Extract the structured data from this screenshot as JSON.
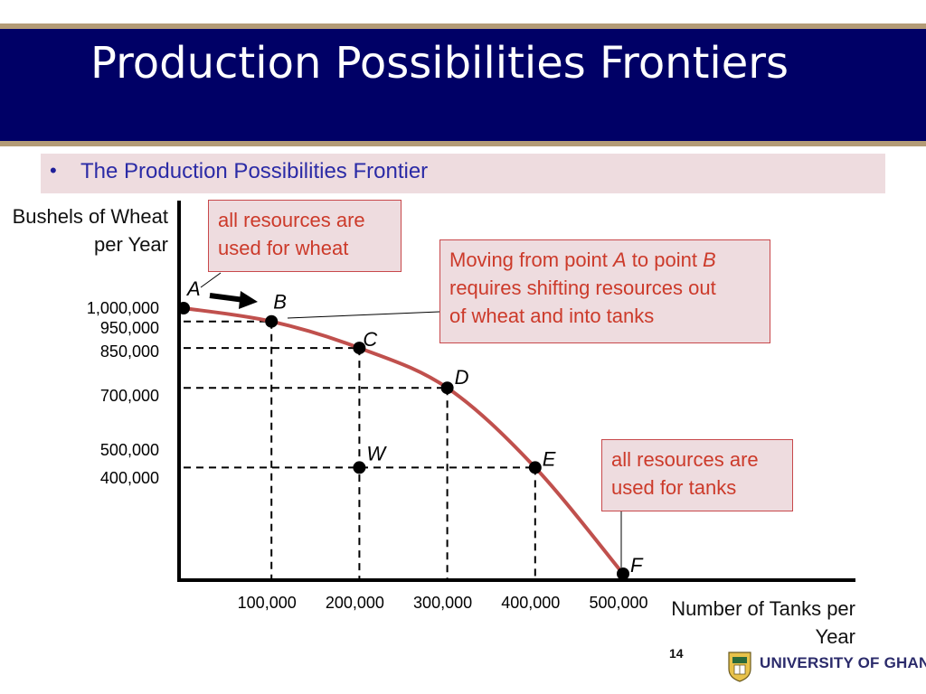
{
  "slide": {
    "title": "Production Possibilities Frontiers",
    "bullet": "The Production Possibilities Frontier",
    "page_number": "14",
    "university": "UNIVERSITY OF GHANA"
  },
  "callouts": {
    "wheat_line1": "all resources are",
    "wheat_line2": "used for wheat",
    "move_l1a": "Moving from point ",
    "move_l1b": "A",
    "move_l1c": " to point ",
    "move_l1d": "B",
    "move_l2": "requires shifting resources out",
    "move_l3": "of wheat and into tanks",
    "tanks_line1": "all resources are",
    "tanks_line2": "used for tanks"
  },
  "axes": {
    "ylabel_line1": "Bushels of Wheat",
    "ylabel_line2": "per Year",
    "xlabel_line1": "Number of Tanks per",
    "xlabel_line2": "Year"
  },
  "colors": {
    "curve": "#c0504d",
    "title_band": "#000066",
    "callout_text": "#cc3a2a",
    "callout_fill": "#eedcdf"
  },
  "chart_data": {
    "type": "line",
    "xlim": [
      0,
      500000
    ],
    "ylim": [
      0,
      1000000
    ],
    "points": [
      {
        "label": "A",
        "x": 0,
        "y": 1000000,
        "on_frontier": true
      },
      {
        "label": "B",
        "x": 100000,
        "y": 950000,
        "on_frontier": true
      },
      {
        "label": "C",
        "x": 200000,
        "y": 850000,
        "on_frontier": true
      },
      {
        "label": "D",
        "x": 300000,
        "y": 700000,
        "on_frontier": true
      },
      {
        "label": "E",
        "x": 400000,
        "y": 400000,
        "on_frontier": true
      },
      {
        "label": "F",
        "x": 500000,
        "y": 0,
        "on_frontier": true
      },
      {
        "label": "W",
        "x": 200000,
        "y": 400000,
        "on_frontier": false
      }
    ],
    "x_ticks": [
      "100,000",
      "200,000",
      "300,000",
      "400,000",
      "500,000"
    ],
    "y_ticks": [
      "1,000,000",
      "950,000",
      "850,000",
      "700,000",
      "500,000",
      "400,000"
    ],
    "grid": "dashed guide lines to points"
  }
}
